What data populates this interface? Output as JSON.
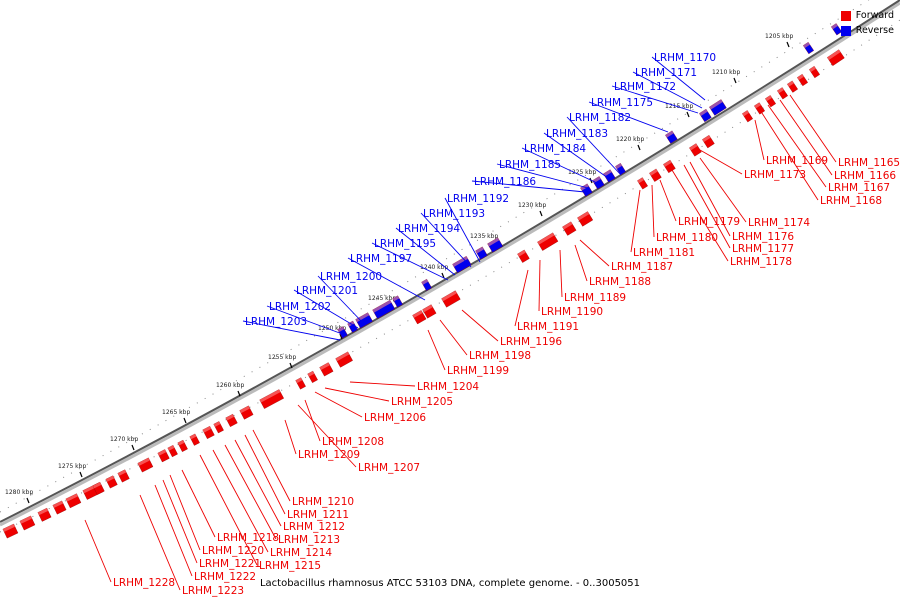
{
  "caption": "Lactobacillus rhamnosus ATCC 53103 DNA, complete genome. - 0..3005051",
  "legend": [
    {
      "label": "Forward",
      "color": "#ee0000"
    },
    {
      "label": "Reverse",
      "color": "#0000ee"
    }
  ],
  "colors": {
    "forward": "#ee0000",
    "reverse": "#0000ee"
  },
  "ticks": [
    "1205 kbp",
    "1210 kbp",
    "1215 kbp",
    "1220 kbp",
    "1225 kbp",
    "1230 kbp",
    "1235 kbp",
    "1240 kbp",
    "1245 kbp",
    "1250 kbp",
    "1255 kbp",
    "1260 kbp",
    "1265 kbp",
    "1270 kbp",
    "1275 kbp",
    "1280 kbp"
  ],
  "reverse_genes": [
    "LRHM_1170",
    "LRHM_1171",
    "LRHM_1172",
    "LRHM_1175",
    "LRHM_1182",
    "LRHM_1183",
    "LRHM_1184",
    "LRHM_1185",
    "LRHM_1186",
    "LRHM_1192",
    "LRHM_1193",
    "LRHM_1194",
    "LRHM_1195",
    "LRHM_1197",
    "LRHM_1200",
    "LRHM_1201",
    "LRHM_1202",
    "LRHM_1203"
  ],
  "forward_genes": [
    "LRHM_1165",
    "LRHM_1166",
    "LRHM_1167",
    "LRHM_1168",
    "LRHM_1169",
    "LRHM_1173",
    "LRHM_1174",
    "LRHM_1176",
    "LRHM_1177",
    "LRHM_1178",
    "LRHM_1179",
    "LRHM_1180",
    "LRHM_1181",
    "LRHM_1187",
    "LRHM_1188",
    "LRHM_1189",
    "LRHM_1190",
    "LRHM_1191",
    "LRHM_1196",
    "LRHM_1198",
    "LRHM_1199",
    "LRHM_1204",
    "LRHM_1205",
    "LRHM_1206",
    "LRHM_1207",
    "LRHM_1208",
    "LRHM_1209",
    "LRHM_1210",
    "LRHM_1211",
    "LRHM_1212",
    "LRHM_1213",
    "LRHM_1214",
    "LRHM_1215",
    "LRHM_1218",
    "LRHM_1220",
    "LRHM_1221",
    "LRHM_1222",
    "LRHM_1223",
    "LRHM_1228"
  ]
}
